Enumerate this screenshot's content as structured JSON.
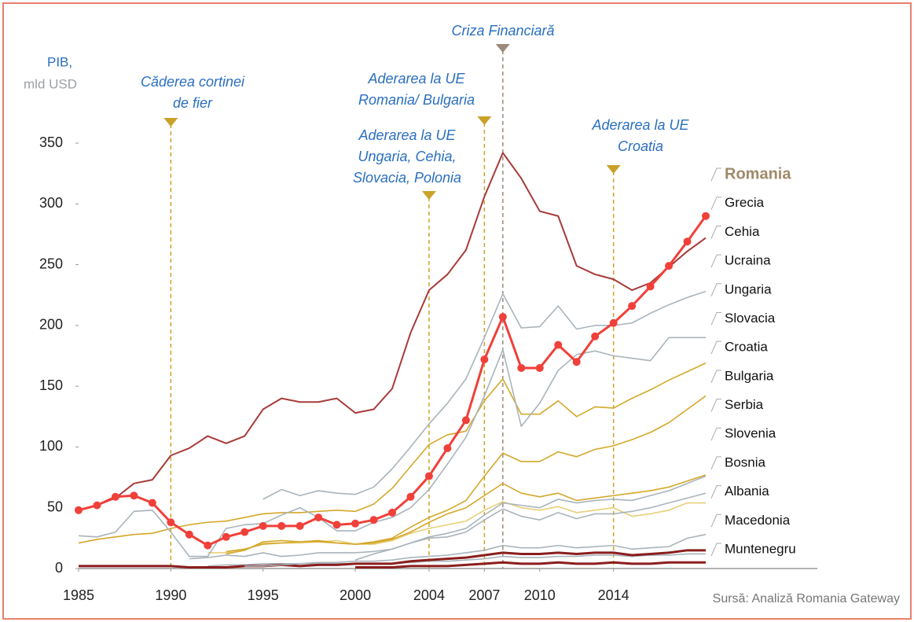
{
  "chart_data": {
    "type": "line",
    "y_label_lines": [
      "PIB,",
      "mld USD"
    ],
    "source": "Sursă: Analiză Romania Gateway",
    "x": [
      1985,
      1986,
      1987,
      1988,
      1989,
      1990,
      1991,
      1992,
      1993,
      1994,
      1995,
      1996,
      1997,
      1998,
      1999,
      2000,
      2001,
      2002,
      2003,
      2004,
      2005,
      2006,
      2007,
      2008,
      2009,
      2010,
      2011,
      2012,
      2013,
      2014,
      2015,
      2016,
      2017,
      2018,
      2019
    ],
    "xlim": [
      1985,
      2019
    ],
    "xticks": [
      1985,
      1990,
      1995,
      2000,
      2004,
      2007,
      2010,
      2014
    ],
    "ylim": [
      0,
      350
    ],
    "yticks": [
      0,
      50,
      100,
      150,
      200,
      250,
      300,
      350
    ],
    "grid": false,
    "series": [
      {
        "name": "Romania",
        "color": "#f0403a",
        "markers": true,
        "values": [
          48,
          52,
          59,
          60,
          54,
          38,
          28,
          19,
          26,
          30,
          35,
          35,
          35,
          42,
          36,
          37,
          40,
          46,
          59,
          76,
          99,
          122,
          172,
          207,
          165,
          165,
          184,
          170,
          191,
          202,
          216,
          232,
          249,
          269,
          290
        ]
      },
      {
        "name": "Grecia",
        "color": "#a83a3a",
        "markers": false,
        "values": [
          48,
          52,
          58,
          70,
          73,
          93,
          99,
          109,
          103,
          109,
          131,
          140,
          137,
          137,
          140,
          128,
          131,
          148,
          194,
          229,
          242,
          262,
          306,
          342,
          321,
          294,
          290,
          249,
          242,
          238,
          229,
          235,
          248,
          261,
          272
        ]
      },
      {
        "name": "Cehia",
        "color": "#a9b4bb",
        "markers": false,
        "values": [
          null,
          null,
          null,
          null,
          null,
          null,
          null,
          null,
          null,
          null,
          57,
          65,
          60,
          64,
          62,
          61,
          67,
          82,
          100,
          119,
          136,
          156,
          190,
          226,
          198,
          199,
          216,
          197,
          200,
          200,
          202,
          210,
          217,
          223,
          228
        ]
      },
      {
        "name": "Ucraina",
        "color": "#a9b4bb",
        "markers": false,
        "values": [
          27,
          26,
          30,
          47,
          48,
          30,
          10,
          10,
          33,
          36,
          37,
          44,
          50,
          42,
          31,
          31,
          38,
          42,
          50,
          65,
          86,
          108,
          142,
          180,
          117,
          136,
          163,
          176,
          179,
          175,
          173,
          171,
          190,
          190,
          190
        ]
      },
      {
        "name": "Ungaria",
        "color": "#d4a82a",
        "markers": false,
        "values": [
          21,
          24,
          26,
          28,
          29,
          33,
          36,
          38,
          39,
          42,
          45,
          46,
          46,
          47,
          48,
          47,
          53,
          66,
          84,
          102,
          110,
          113,
          138,
          156,
          127,
          127,
          138,
          125,
          133,
          132,
          140,
          147,
          155,
          162,
          169
        ]
      },
      {
        "name": "Slovacia",
        "color": "#d4a82a",
        "markers": false,
        "values": [
          null,
          null,
          null,
          null,
          null,
          null,
          null,
          null,
          14,
          16,
          20,
          21,
          22,
          22,
          21,
          20,
          22,
          25,
          34,
          42,
          48,
          56,
          76,
          95,
          88,
          88,
          96,
          92,
          98,
          101,
          106,
          112,
          120,
          131,
          142
        ]
      },
      {
        "name": "Croatia",
        "color": "#d4a82a",
        "markers": false,
        "values": [
          null,
          null,
          null,
          null,
          null,
          null,
          null,
          null,
          12,
          15,
          22,
          23,
          22,
          23,
          21,
          20,
          21,
          24,
          30,
          38,
          45,
          50,
          60,
          70,
          62,
          59,
          62,
          56,
          58,
          60,
          62,
          64,
          67,
          72,
          77
        ]
      },
      {
        "name": "Bulgaria",
        "color": "#a9b4bb",
        "markers": false,
        "values": [
          null,
          null,
          null,
          null,
          null,
          null,
          8,
          9,
          11,
          10,
          13,
          10,
          11,
          13,
          13,
          13,
          14,
          16,
          21,
          26,
          29,
          33,
          44,
          54,
          52,
          50,
          57,
          54,
          56,
          57,
          56,
          60,
          64,
          70,
          76
        ]
      },
      {
        "name": "Serbia",
        "color": "#a9b4bb",
        "markers": false,
        "values": [
          null,
          null,
          null,
          null,
          null,
          null,
          null,
          null,
          null,
          null,
          null,
          null,
          null,
          null,
          null,
          7,
          12,
          16,
          21,
          25,
          26,
          30,
          40,
          49,
          43,
          40,
          46,
          41,
          45,
          45,
          47,
          50,
          54,
          58,
          62
        ]
      },
      {
        "name": "Slovenia",
        "color": "#e8cf7a",
        "markers": false,
        "values": [
          null,
          null,
          null,
          null,
          null,
          null,
          null,
          13,
          13,
          15,
          21,
          21,
          21,
          22,
          23,
          20,
          20,
          23,
          29,
          33,
          36,
          39,
          48,
          55,
          50,
          48,
          51,
          46,
          48,
          50,
          43,
          45,
          48,
          54,
          54
        ]
      },
      {
        "name": "Bosnia",
        "color": "#a9b4bb",
        "markers": false,
        "values": [
          null,
          null,
          null,
          null,
          null,
          null,
          null,
          null,
          null,
          2,
          2,
          3,
          4,
          5,
          5,
          6,
          6,
          7,
          9,
          10,
          11,
          13,
          15,
          19,
          17,
          17,
          19,
          17,
          18,
          19,
          16,
          17,
          18,
          25,
          28
        ]
      },
      {
        "name": "Albania",
        "color": "#8b1e1e",
        "markers": false,
        "values": [
          2,
          2,
          2,
          2,
          2,
          2,
          1,
          1,
          1,
          2,
          2,
          3,
          2,
          3,
          3,
          4,
          4,
          4,
          6,
          7,
          8,
          9,
          11,
          13,
          12,
          12,
          13,
          12,
          13,
          13,
          11,
          12,
          13,
          15,
          15
        ]
      },
      {
        "name": "Macedonia",
        "color": "#a9b4bb",
        "markers": false,
        "values": [
          null,
          null,
          null,
          null,
          null,
          null,
          null,
          2,
          3,
          3,
          4,
          4,
          4,
          4,
          4,
          4,
          4,
          4,
          5,
          6,
          6,
          7,
          8,
          10,
          9,
          9,
          10,
          10,
          11,
          11,
          10,
          11,
          11,
          12,
          12
        ]
      },
      {
        "name": "Muntenegru",
        "color": "#8b1e1e",
        "markers": false,
        "values": [
          null,
          null,
          null,
          null,
          null,
          null,
          null,
          null,
          null,
          null,
          null,
          null,
          null,
          null,
          null,
          1,
          1,
          1,
          2,
          2,
          2,
          3,
          4,
          5,
          4,
          4,
          5,
          4,
          4,
          5,
          4,
          4,
          5,
          5,
          5
        ]
      }
    ],
    "annotations": [
      {
        "x": 1990,
        "text": [
          "Căderea cortinei",
          "de fier"
        ],
        "color": "#c9a227"
      },
      {
        "x": 2004,
        "text": [
          "Aderarea la UE",
          "Ungaria, Cehia,",
          "Slovacia, Polonia"
        ],
        "color": "#c9a227"
      },
      {
        "x": 2007,
        "text": [
          "Aderarea la UE",
          "Romania/ Bulgaria"
        ],
        "color": "#c9a227"
      },
      {
        "x": 2008,
        "text": [
          "Criza Financiară"
        ],
        "color": "#9b8b7a"
      },
      {
        "x": 2014,
        "text": [
          "Aderarea la UE",
          "Croatia"
        ],
        "color": "#c9a227"
      }
    ]
  }
}
